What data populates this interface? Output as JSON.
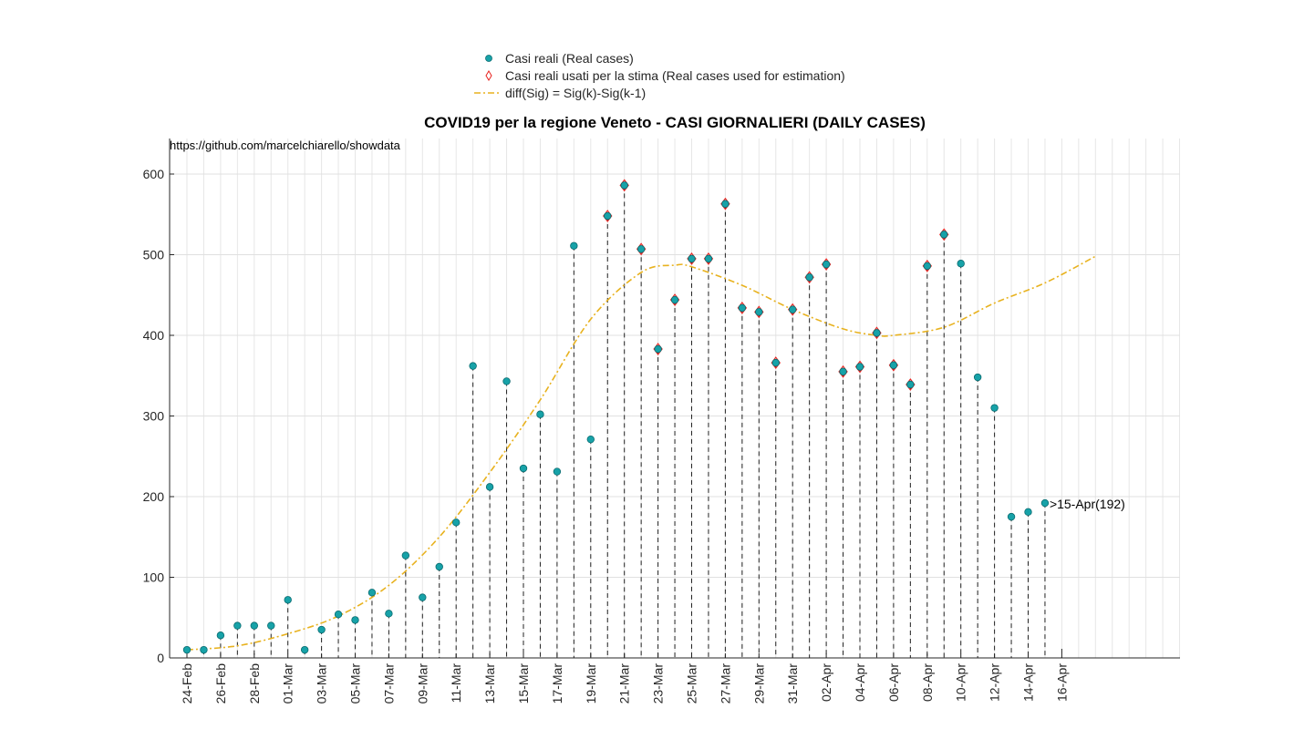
{
  "chart_data": {
    "type": "scatter",
    "title": "COVID19 per la regione Veneto - CASI GIORNALIERI (DAILY CASES)",
    "source_note": "https://github.com/marcelchiarello/showdata",
    "annotation": ">15-Apr(192)",
    "xlabel": "",
    "ylabel": "",
    "ylim": [
      0,
      650
    ],
    "yticks": [
      0,
      100,
      200,
      300,
      400,
      500,
      600
    ],
    "grid": true,
    "legend_position": "top-center outside",
    "x_dates": [
      "24-Feb",
      "25-Feb",
      "26-Feb",
      "27-Feb",
      "28-Feb",
      "29-Feb",
      "01-Mar",
      "02-Mar",
      "03-Mar",
      "04-Mar",
      "05-Mar",
      "06-Mar",
      "07-Mar",
      "08-Mar",
      "09-Mar",
      "10-Mar",
      "11-Mar",
      "12-Mar",
      "13-Mar",
      "14-Mar",
      "15-Mar",
      "16-Mar",
      "17-Mar",
      "18-Mar",
      "19-Mar",
      "20-Mar",
      "21-Mar",
      "22-Mar",
      "23-Mar",
      "24-Mar",
      "25-Mar",
      "26-Mar",
      "27-Mar",
      "28-Mar",
      "29-Mar",
      "30-Mar",
      "31-Mar",
      "01-Apr",
      "02-Apr",
      "03-Apr",
      "04-Apr",
      "05-Apr",
      "06-Apr",
      "07-Apr",
      "08-Apr",
      "09-Apr",
      "10-Apr",
      "11-Apr",
      "12-Apr",
      "13-Apr",
      "14-Apr",
      "15-Apr",
      "16-Apr",
      "17-Apr",
      "18-Apr",
      "19-Apr",
      "20-Apr",
      "21-Apr",
      "22-Apr",
      "23-Apr",
      "24-Apr",
      "25-Apr",
      "26-Apr"
    ],
    "xtick_labels": [
      "24-Feb",
      "26-Feb",
      "28-Feb",
      "01-Mar",
      "03-Mar",
      "05-Mar",
      "07-Mar",
      "09-Mar",
      "11-Mar",
      "13-Mar",
      "15-Mar",
      "17-Mar",
      "19-Mar",
      "21-Mar",
      "23-Mar",
      "25-Mar",
      "27-Mar",
      "29-Mar",
      "31-Mar",
      "02-Apr",
      "04-Apr",
      "06-Apr",
      "08-Apr",
      "10-Apr",
      "12-Apr",
      "14-Apr",
      "16-Apr"
    ],
    "series": [
      {
        "name": "Casi reali (Real cases)",
        "marker": "circle",
        "color": "#17a2a8",
        "x": [
          "24-Feb",
          "25-Feb",
          "26-Feb",
          "27-Feb",
          "28-Feb",
          "29-Feb",
          "01-Mar",
          "02-Mar",
          "03-Mar",
          "04-Mar",
          "05-Mar",
          "06-Mar",
          "07-Mar",
          "08-Mar",
          "09-Mar",
          "10-Mar",
          "11-Mar",
          "12-Mar",
          "13-Mar",
          "14-Mar",
          "15-Mar",
          "16-Mar",
          "17-Mar",
          "18-Mar",
          "19-Mar",
          "20-Mar",
          "21-Mar",
          "22-Mar",
          "23-Mar",
          "24-Mar",
          "25-Mar",
          "26-Mar",
          "27-Mar",
          "28-Mar",
          "29-Mar",
          "30-Mar",
          "31-Mar",
          "01-Apr",
          "02-Apr",
          "03-Apr",
          "04-Apr",
          "05-Apr",
          "06-Apr",
          "07-Apr",
          "08-Apr",
          "09-Apr",
          "10-Apr",
          "11-Apr",
          "12-Apr",
          "13-Apr",
          "14-Apr",
          "15-Apr"
        ],
        "values": [
          10,
          10,
          28,
          40,
          40,
          40,
          72,
          10,
          35,
          54,
          47,
          81,
          55,
          127,
          75,
          113,
          168,
          362,
          212,
          343,
          235,
          302,
          231,
          511,
          271,
          548,
          586,
          507,
          383,
          444,
          495,
          495,
          563,
          434,
          429,
          366,
          432,
          472,
          488,
          355,
          361,
          403,
          363,
          339,
          486,
          525,
          489,
          348,
          310,
          175,
          181,
          192
        ]
      },
      {
        "name": "Casi reali usati per la stima (Real cases used for estimation)",
        "marker": "diamond",
        "color": "#e8231f",
        "x": [
          "20-Mar",
          "21-Mar",
          "22-Mar",
          "23-Mar",
          "24-Mar",
          "25-Mar",
          "26-Mar",
          "27-Mar",
          "28-Mar",
          "29-Mar",
          "30-Mar",
          "31-Mar",
          "01-Apr",
          "02-Apr",
          "03-Apr",
          "04-Apr",
          "05-Apr",
          "06-Apr",
          "07-Apr",
          "08-Apr",
          "09-Apr"
        ],
        "values": [
          548,
          586,
          507,
          383,
          444,
          495,
          495,
          563,
          434,
          429,
          366,
          432,
          472,
          488,
          355,
          361,
          403,
          363,
          339,
          486,
          525
        ]
      },
      {
        "name": "diff(Sig) = Sig(k)-Sig(k-1)",
        "marker": "dash-dot line",
        "color": "#e8b21f",
        "x": [
          "24-Feb",
          "27-Feb",
          "01-Mar",
          "04-Mar",
          "07-Mar",
          "10-Mar",
          "13-Mar",
          "16-Mar",
          "19-Mar",
          "22-Mar",
          "24-Mar",
          "25-Mar",
          "28-Mar",
          "31-Mar",
          "03-Apr",
          "05-Apr",
          "06-Apr",
          "09-Apr",
          "12-Apr",
          "15-Apr",
          "18-Apr"
        ],
        "values": [
          10,
          15,
          30,
          52,
          90,
          150,
          230,
          320,
          420,
          478,
          487,
          485,
          462,
          432,
          408,
          400,
          400,
          410,
          440,
          465,
          498
        ]
      }
    ]
  }
}
